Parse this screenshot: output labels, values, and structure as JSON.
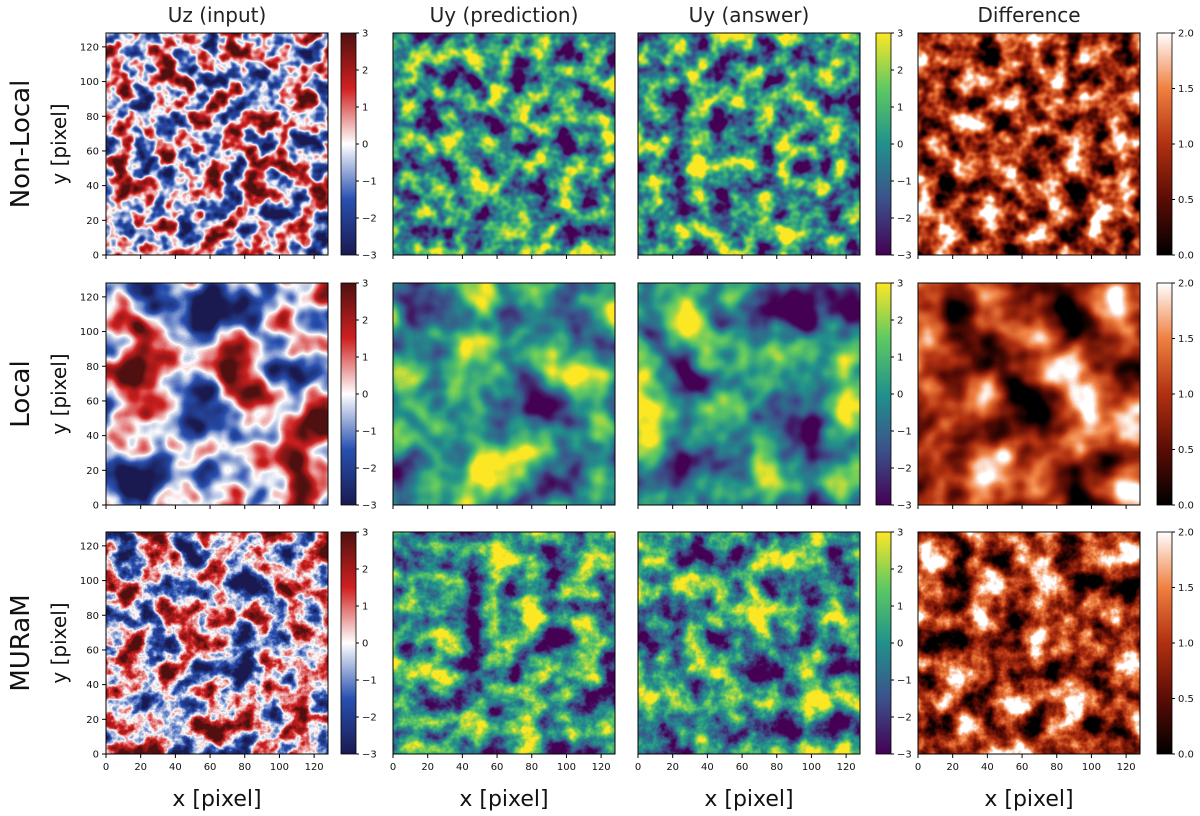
{
  "columns": [
    "Uz (input)",
    "Uy (prediction)",
    "Uy (answer)",
    "Difference"
  ],
  "rows": [
    "Non-Local",
    "Local",
    "MURaM"
  ],
  "ylabel": "y [pixel]",
  "xlabel": "x [pixel]",
  "chart_data": {
    "type": "heatmap",
    "panel_grid": {
      "rows": 3,
      "cols": 4
    },
    "x_ticks": [
      0,
      20,
      40,
      60,
      80,
      100,
      120
    ],
    "y_ticks": [
      0,
      20,
      40,
      60,
      80,
      100,
      120
    ],
    "xlim": [
      0,
      128
    ],
    "ylim": [
      0,
      128
    ],
    "colorbars": {
      "input": {
        "colormap": "seismic-like (blue-white-red)",
        "range": [
          -3,
          3
        ],
        "ticks": [
          -3,
          -2,
          -1,
          0,
          1,
          2,
          3
        ],
        "stops": [
          "#1a1a50",
          "#2850b0",
          "#ffffff",
          "#d02020",
          "#501010"
        ]
      },
      "velocity": {
        "colormap": "viridis",
        "range": [
          -3,
          3
        ],
        "ticks": [
          -3,
          -2,
          -1,
          0,
          1,
          2,
          3
        ],
        "stops": [
          "#440154",
          "#3b528b",
          "#21918c",
          "#5ec962",
          "#fde725"
        ]
      },
      "difference": {
        "colormap": "gist_heat-like",
        "range": [
          0,
          2
        ],
        "ticks": [
          0.0,
          0.5,
          1.0,
          1.5,
          2.0
        ],
        "stops": [
          "#000000",
          "#5a0c05",
          "#b03010",
          "#f08040",
          "#ffffff"
        ]
      }
    },
    "panels": [
      {
        "row": "Non-Local",
        "column": "Uz (input)",
        "colorbar": "input"
      },
      {
        "row": "Non-Local",
        "column": "Uy (prediction)",
        "colorbar": "velocity"
      },
      {
        "row": "Non-Local",
        "column": "Uy (answer)",
        "colorbar": "velocity"
      },
      {
        "row": "Non-Local",
        "column": "Difference",
        "colorbar": "difference"
      },
      {
        "row": "Local",
        "column": "Uz (input)",
        "colorbar": "input"
      },
      {
        "row": "Local",
        "column": "Uy (prediction)",
        "colorbar": "velocity"
      },
      {
        "row": "Local",
        "column": "Uy (answer)",
        "colorbar": "velocity"
      },
      {
        "row": "Local",
        "column": "Difference",
        "colorbar": "difference"
      },
      {
        "row": "MURaM",
        "column": "Uz (input)",
        "colorbar": "input"
      },
      {
        "row": "MURaM",
        "column": "Uy (prediction)",
        "colorbar": "velocity"
      },
      {
        "row": "MURaM",
        "column": "Uy (answer)",
        "colorbar": "velocity"
      },
      {
        "row": "MURaM",
        "column": "Difference",
        "colorbar": "difference"
      }
    ]
  }
}
